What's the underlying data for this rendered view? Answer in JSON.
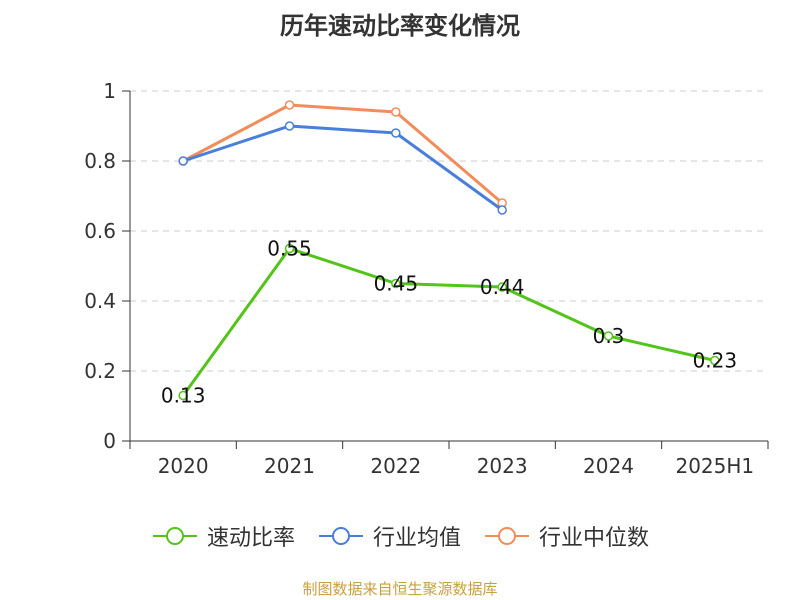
{
  "chart_data": {
    "type": "line",
    "title": "历年速动比率变化情况",
    "categories": [
      "2020",
      "2021",
      "2022",
      "2023",
      "2024",
      "2025H1"
    ],
    "ylim": [
      0,
      1
    ],
    "yticks": [
      "0",
      "0.2",
      "0.4",
      "0.6",
      "0.8",
      "1"
    ],
    "grid": true,
    "legend_position": "bottom",
    "series": [
      {
        "name": "速动比率",
        "color": "#52c41a",
        "values": [
          0.13,
          0.55,
          0.45,
          0.44,
          0.3,
          0.23
        ],
        "labels": [
          "0.13",
          "0.55",
          "0.45",
          "0.44",
          "0.3",
          "0.23"
        ]
      },
      {
        "name": "行业均值",
        "color": "#4a7fd9",
        "values": [
          0.8,
          0.9,
          0.88,
          0.66,
          null,
          null
        ]
      },
      {
        "name": "行业中位数",
        "color": "#f28c5a",
        "values": [
          0.8,
          0.96,
          0.94,
          0.68,
          null,
          null
        ]
      }
    ]
  },
  "source_text": "制图数据来自恒生聚源数据库"
}
